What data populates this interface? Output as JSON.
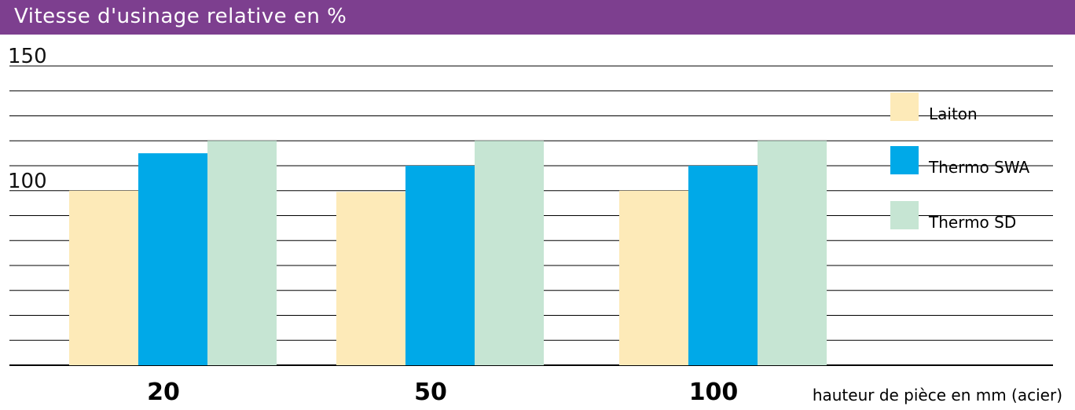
{
  "header": {
    "title": "Vitesse d'usinage relative en %"
  },
  "colors": {
    "banner": "#7d3f8f",
    "Laiton": "#fdeab8",
    "Thermo SWA": "#00a9e8",
    "Thermo SD": "#c6e5d3",
    "grid": "#000000"
  },
  "chart_data": {
    "type": "bar",
    "title": "Vitesse d'usinage relative en %",
    "xlabel": "hauteur de pièce en mm (acier)",
    "ylabel": "",
    "categories": [
      "20",
      "50",
      "100"
    ],
    "series": [
      {
        "name": "Laiton",
        "values": [
          100,
          99.5,
          100
        ]
      },
      {
        "name": "Thermo SWA",
        "values": [
          115,
          110,
          110
        ]
      },
      {
        "name": "Thermo SD",
        "values": [
          120,
          120,
          120
        ]
      }
    ],
    "ylim": [
      30,
      150
    ],
    "yticks_labeled": [
      100,
      150
    ],
    "grid_step": 10,
    "grid": true,
    "legend_position": "right"
  }
}
